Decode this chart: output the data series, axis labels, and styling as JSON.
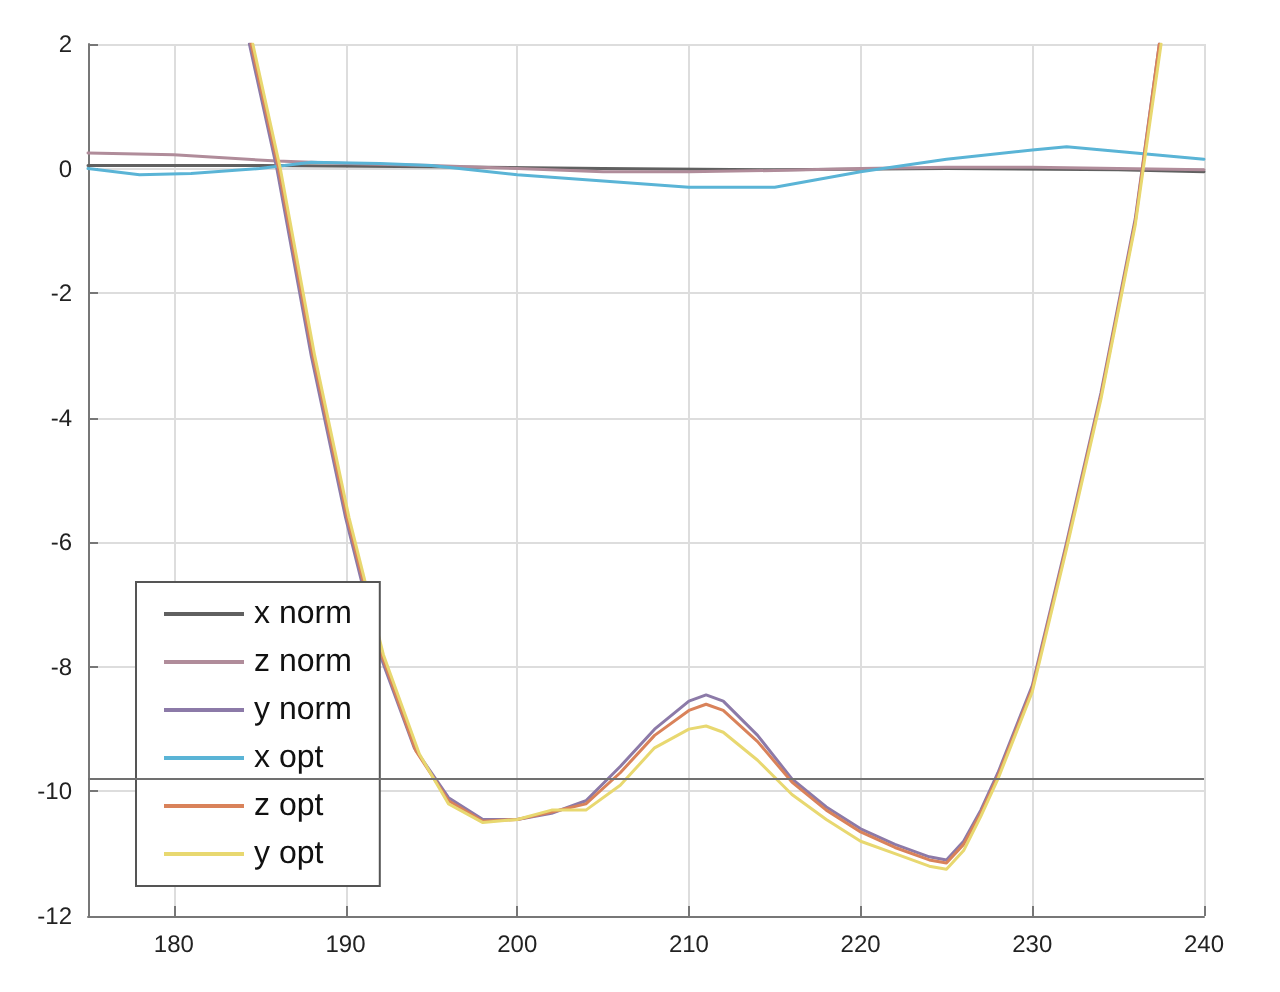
{
  "chart_data": {
    "type": "line",
    "xlim": [
      175,
      240
    ],
    "xticks": [
      180,
      190,
      200,
      210,
      220,
      230,
      240
    ],
    "ylim": [
      -12,
      2
    ],
    "yticks": [
      -12,
      -10,
      -8,
      -6,
      -4,
      -2,
      0,
      2
    ],
    "grid": true,
    "legend": "bottom left",
    "line_style": "solid",
    "marker": "none",
    "ref_lines": [
      {
        "axis": "y",
        "value": -9.8,
        "label": null,
        "color": "#707070"
      }
    ],
    "series": [
      {
        "name": "x norm",
        "color": "#606060",
        "x": [
          175,
          185,
          195,
          205,
          215,
          225,
          235,
          240
        ],
        "values": [
          0.05,
          0.05,
          0.03,
          0,
          -0.02,
          0,
          -0.02,
          -0.05
        ]
      },
      {
        "name": "z norm",
        "color": "#b08c9a",
        "x": [
          175,
          180,
          186,
          190,
          195,
          200,
          205,
          210,
          215,
          220,
          225,
          230,
          235,
          240
        ],
        "values": [
          0.25,
          0.22,
          0.12,
          0.08,
          0.05,
          0,
          -0.05,
          -0.05,
          -0.03,
          0,
          0.02,
          0.02,
          0,
          -0.02
        ]
      },
      {
        "name": "y norm",
        "color": "#8c7aa8",
        "x": [
          184.4,
          186,
          188,
          190,
          192,
          194,
          196,
          198,
          200,
          202,
          204,
          206,
          208,
          210,
          211,
          212,
          214,
          216,
          218,
          220,
          222,
          224,
          225,
          226,
          227,
          228,
          230,
          232,
          234,
          236,
          237.4
        ],
        "values": [
          2,
          0,
          -3,
          -5.6,
          -7.8,
          -9.3,
          -10.1,
          -10.45,
          -10.45,
          -10.35,
          -10.15,
          -9.6,
          -9.0,
          -8.55,
          -8.45,
          -8.55,
          -9.1,
          -9.8,
          -10.25,
          -10.6,
          -10.85,
          -11.05,
          -11.1,
          -10.8,
          -10.3,
          -9.7,
          -8.3,
          -6,
          -3.6,
          -0.8,
          2
        ]
      },
      {
        "name": "x opt",
        "color": "#5ab4d6",
        "x": [
          175,
          178,
          181,
          185,
          188,
          192,
          195,
          200,
          205,
          210,
          215,
          220,
          225,
          230,
          232,
          236,
          240
        ],
        "values": [
          0,
          -0.1,
          -0.08,
          0,
          0.1,
          0.08,
          0.05,
          -0.1,
          -0.2,
          -0.3,
          -0.3,
          -0.05,
          0.15,
          0.3,
          0.35,
          0.25,
          0.15
        ]
      },
      {
        "name": "z opt",
        "color": "#d9825a",
        "x": [
          184.5,
          186.1,
          188.1,
          190.1,
          192.1,
          194.1,
          196,
          198,
          200,
          202,
          204,
          206,
          208,
          210,
          211,
          212,
          214,
          216,
          218,
          220,
          222,
          224,
          225,
          226,
          227,
          228,
          230,
          232,
          234,
          236,
          237.4
        ],
        "values": [
          2,
          0,
          -3,
          -5.6,
          -7.8,
          -9.35,
          -10.15,
          -10.48,
          -10.45,
          -10.33,
          -10.2,
          -9.7,
          -9.1,
          -8.7,
          -8.6,
          -8.7,
          -9.2,
          -9.85,
          -10.3,
          -10.65,
          -10.9,
          -11.1,
          -11.15,
          -10.85,
          -10.35,
          -9.75,
          -8.35,
          -6.05,
          -3.65,
          -0.85,
          2
        ]
      },
      {
        "name": "y opt",
        "color": "#e8d870",
        "x": [
          184.6,
          186.2,
          188.2,
          190.2,
          192.2,
          194.3,
          196,
          198,
          200,
          202,
          204,
          206,
          208,
          210,
          211,
          212,
          214,
          216,
          218,
          220,
          222,
          224,
          225,
          226,
          227,
          228,
          230,
          232,
          234,
          236,
          237.5
        ],
        "values": [
          2,
          0,
          -3,
          -5.6,
          -7.8,
          -9.4,
          -10.2,
          -10.5,
          -10.45,
          -10.3,
          -10.3,
          -9.9,
          -9.3,
          -9.0,
          -8.95,
          -9.05,
          -9.5,
          -10.05,
          -10.45,
          -10.8,
          -11.0,
          -11.2,
          -11.25,
          -10.95,
          -10.4,
          -9.8,
          -8.4,
          -6.1,
          -3.7,
          -0.9,
          2
        ]
      }
    ]
  }
}
